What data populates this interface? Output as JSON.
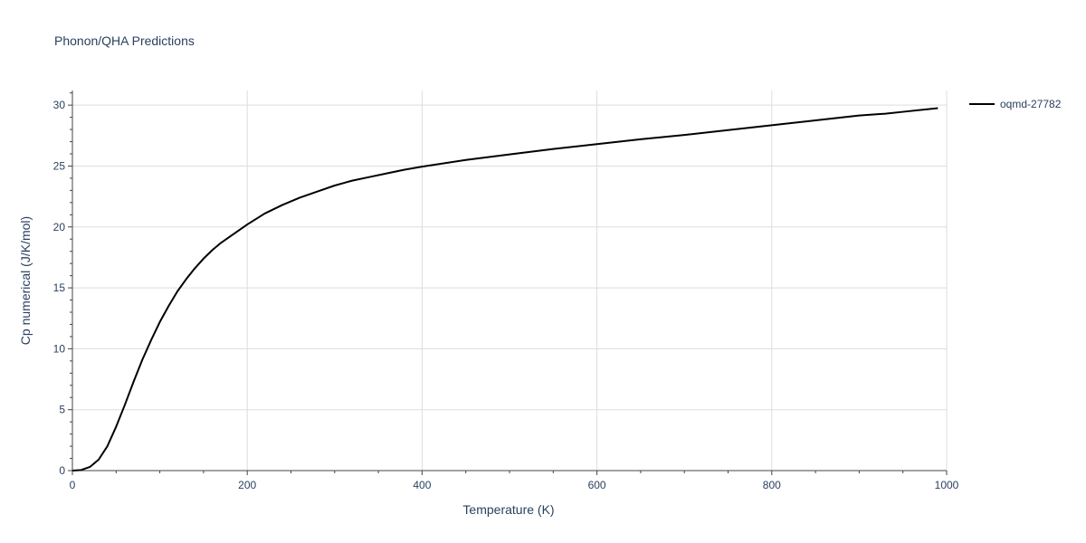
{
  "chart_data": {
    "type": "line",
    "title": "Phonon/QHA Predictions",
    "xlabel": "Temperature (K)",
    "ylabel": "Cp numerical (J/K/mol)",
    "xlim": [
      0,
      1000
    ],
    "ylim": [
      0,
      31.2
    ],
    "xticks": [
      0,
      200,
      400,
      600,
      800,
      1000
    ],
    "yticks": [
      0,
      5,
      10,
      15,
      20,
      25,
      30
    ],
    "grid": true,
    "legend_position": "top-right",
    "series": [
      {
        "name": "oqmd-27782",
        "color": "#000000",
        "x": [
          0,
          10,
          20,
          30,
          40,
          50,
          60,
          70,
          80,
          90,
          100,
          110,
          120,
          130,
          140,
          150,
          160,
          170,
          180,
          190,
          200,
          220,
          240,
          260,
          280,
          300,
          320,
          340,
          360,
          380,
          400,
          450,
          500,
          550,
          600,
          650,
          700,
          750,
          800,
          850,
          900,
          920,
          930,
          950,
          990
        ],
        "y": [
          0,
          0.05,
          0.3,
          0.9,
          2.0,
          3.6,
          5.4,
          7.3,
          9.1,
          10.7,
          12.2,
          13.5,
          14.7,
          15.7,
          16.6,
          17.4,
          18.1,
          18.7,
          19.2,
          19.7,
          20.2,
          21.1,
          21.8,
          22.4,
          22.9,
          23.4,
          23.8,
          24.1,
          24.4,
          24.7,
          24.95,
          25.5,
          25.95,
          26.4,
          26.8,
          27.2,
          27.55,
          27.95,
          28.35,
          28.75,
          29.15,
          29.25,
          29.3,
          29.45,
          29.75
        ]
      }
    ]
  }
}
